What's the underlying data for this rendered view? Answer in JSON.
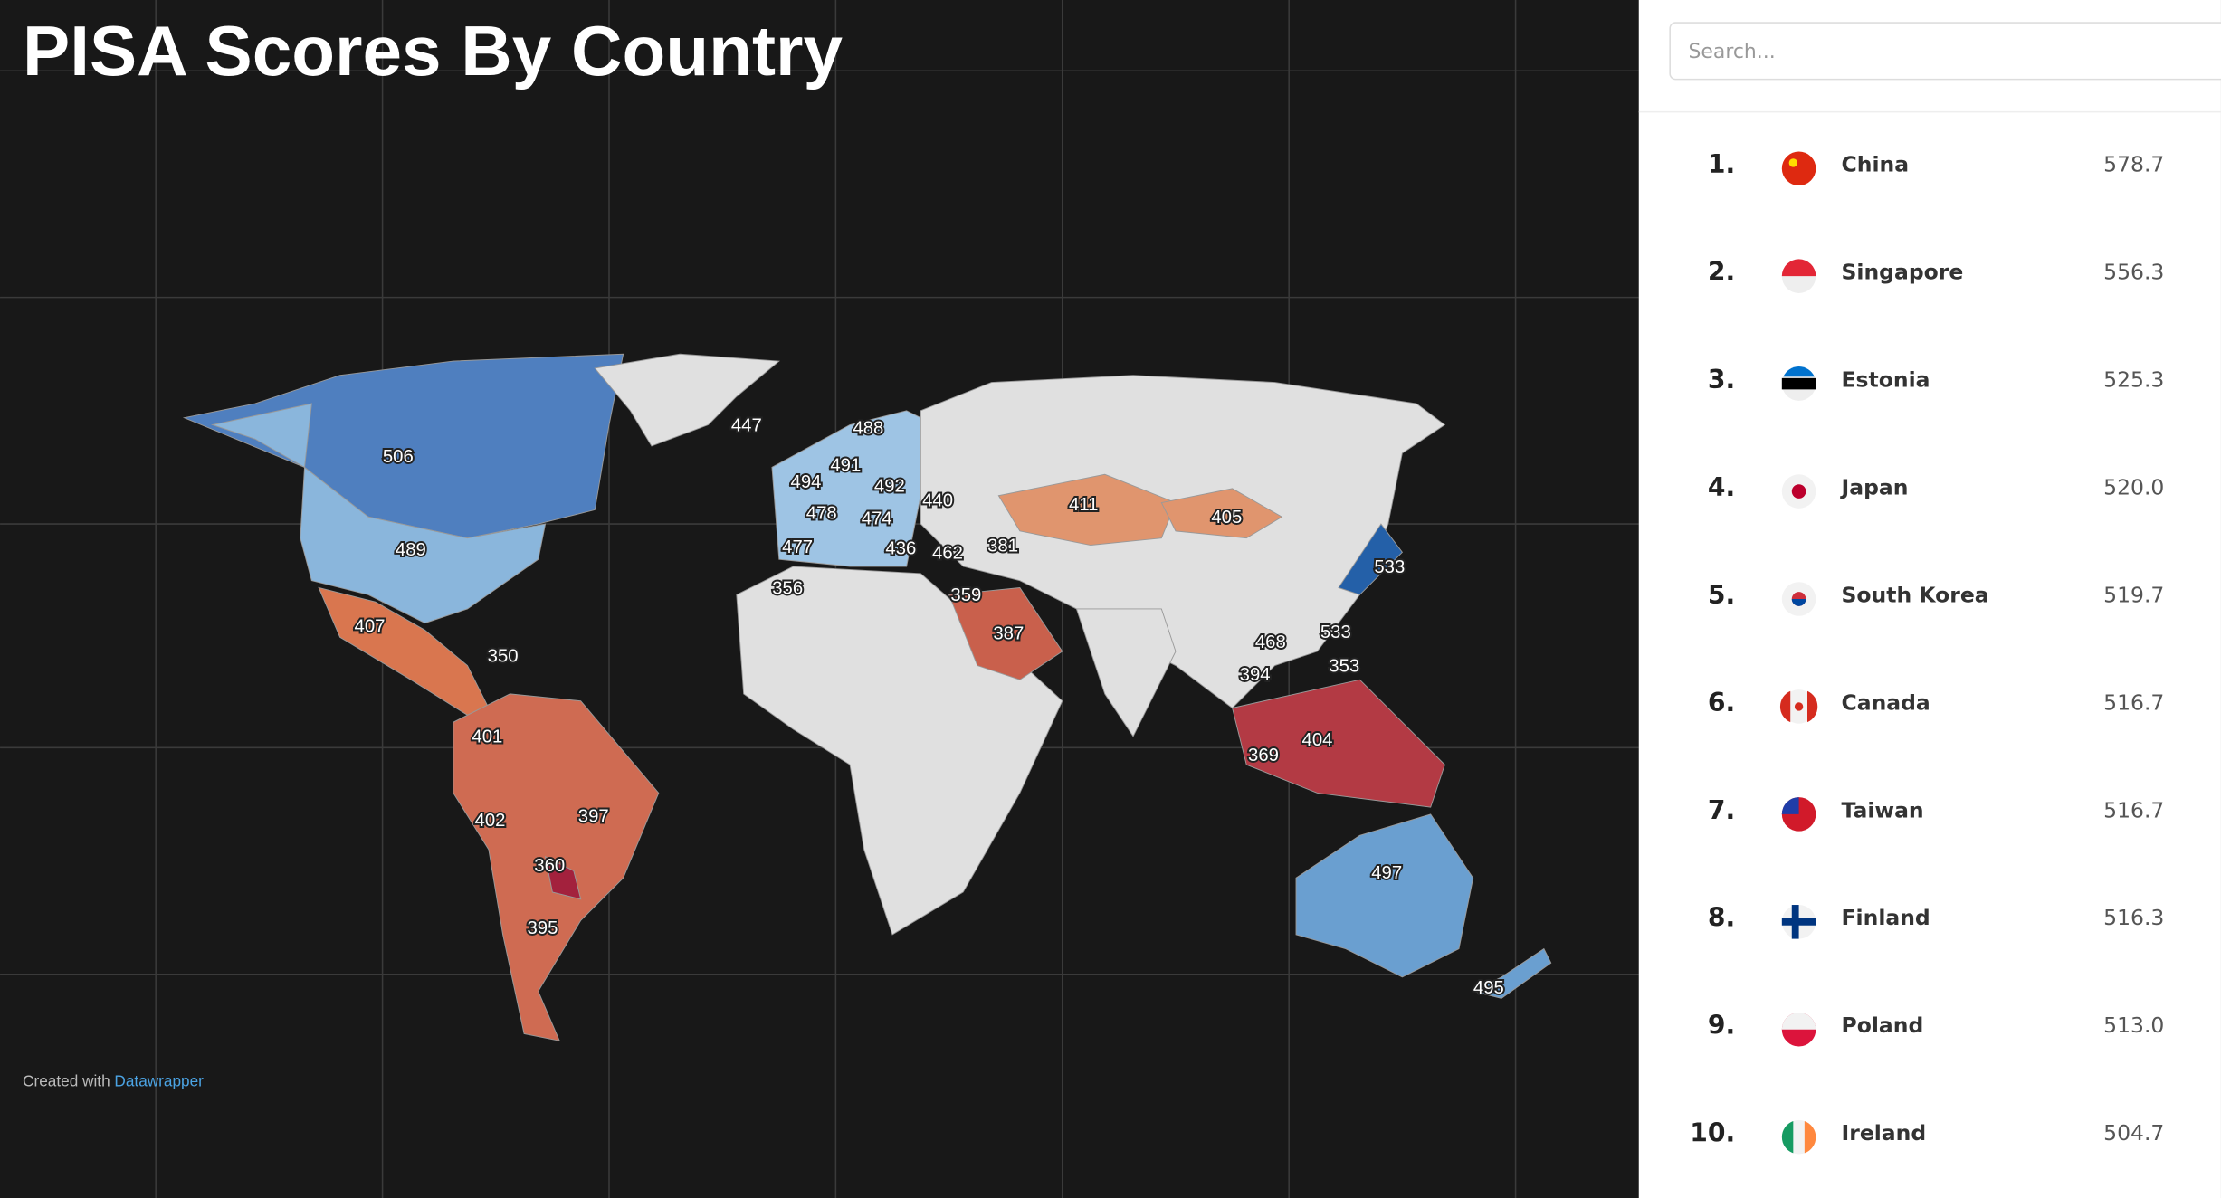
{
  "header": {
    "title": "PISA Scores By Country"
  },
  "map": {
    "labels": [
      506,
      489,
      447,
      488,
      491,
      494,
      492,
      440,
      478,
      474,
      477,
      436,
      462,
      381,
      411,
      405,
      533,
      533,
      356,
      359,
      387,
      407,
      350,
      468,
      353,
      394,
      404,
      369,
      401,
      402,
      397,
      360,
      395,
      497,
      495
    ],
    "credit": {
      "prefix": "Created with",
      "link": "Datawrapper"
    }
  },
  "sidebar": {
    "search_placeholder": "Search...",
    "rows": [
      [
        "1.",
        "China",
        "578.7"
      ],
      [
        "2.",
        "Singapore",
        "556.3"
      ],
      [
        "3.",
        "Estonia",
        "525.3"
      ],
      [
        "4.",
        "Japan",
        "520.0"
      ],
      [
        "5.",
        "South Korea",
        "519.7"
      ],
      [
        "6.",
        "Canada",
        "516.7"
      ],
      [
        "7.",
        "Taiwan",
        "516.7"
      ],
      [
        "8.",
        "Finland",
        "516.3"
      ],
      [
        "9.",
        "Poland",
        "513.0"
      ],
      [
        "10.",
        "Ireland",
        "504.7"
      ]
    ]
  }
}
